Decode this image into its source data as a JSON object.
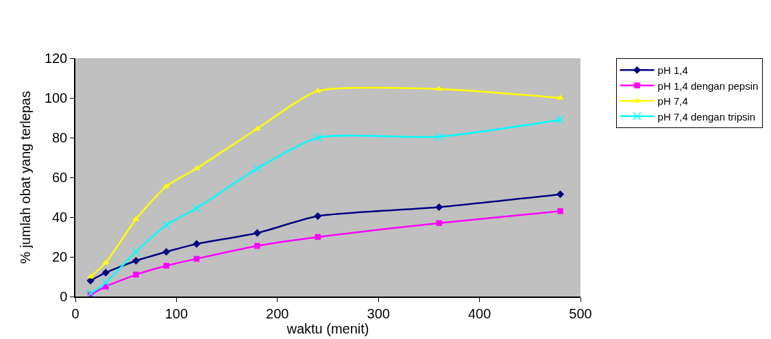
{
  "chart_data": {
    "type": "line",
    "xlabel": "waktu (menit)",
    "ylabel": "% jumlah obat yang terlepas",
    "x": [
      15,
      30,
      60,
      90,
      120,
      180,
      240,
      360,
      480
    ],
    "series": [
      {
        "name": "pH 1,4",
        "color": "#000080",
        "marker": "diamond",
        "values": [
          8,
          12,
          18,
          22.5,
          26.5,
          32,
          40.5,
          45,
          51.5
        ]
      },
      {
        "name": "pH 1,4 dengan pepsin",
        "color": "#ff00ff",
        "marker": "square",
        "values": [
          1,
          5,
          11,
          15.5,
          19,
          25.5,
          30,
          37,
          43
        ]
      },
      {
        "name": "pH 7,4",
        "color": "#ffff00",
        "marker": "triangle",
        "values": [
          10,
          17,
          39,
          55.5,
          64.5,
          84.5,
          103.5,
          104.5,
          100
        ]
      },
      {
        "name": "pH 7,4 dengan tripsin",
        "color": "#00ffff",
        "marker": "cross",
        "values": [
          1.5,
          7,
          22.5,
          36,
          44.5,
          64.5,
          80,
          80.5,
          89
        ]
      }
    ],
    "xlim": [
      0,
      500
    ],
    "xticks": [
      0,
      100,
      200,
      300,
      400,
      500
    ],
    "ylim": [
      0,
      120
    ],
    "yticks": [
      0,
      20,
      40,
      60,
      80,
      100,
      120
    ],
    "grid": false,
    "legend": "right",
    "line_style": "solid"
  }
}
